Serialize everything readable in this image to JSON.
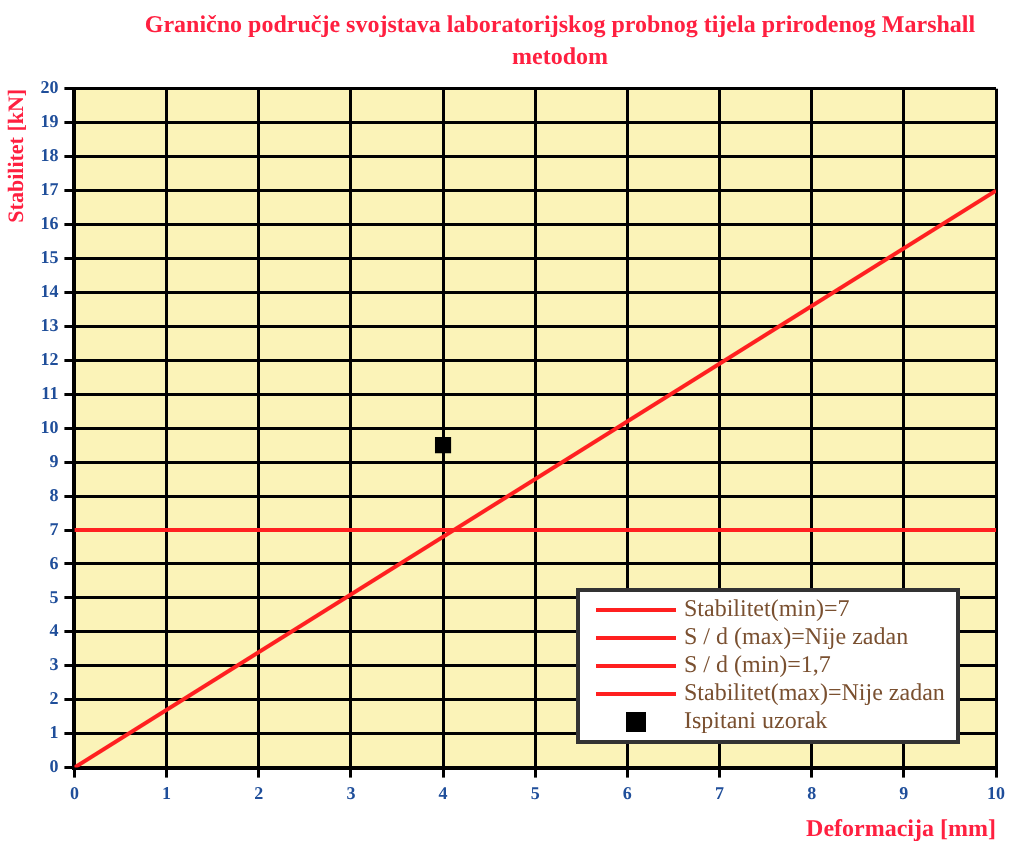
{
  "chart_data": {
    "type": "line",
    "title": "Granično područje svojstava laboratorijskog probnog tijela prirodenog Marshall metodom",
    "xlabel": "Deformacija [mm]",
    "ylabel": "Stabilitet [kN]",
    "xlim": [
      0,
      10
    ],
    "xticks": [
      0,
      1,
      2,
      3,
      4,
      5,
      6,
      7,
      8,
      9,
      10
    ],
    "ylim": [
      0,
      20
    ],
    "yticks": [
      0,
      1,
      2,
      3,
      4,
      5,
      6,
      7,
      8,
      9,
      10,
      11,
      12,
      13,
      14,
      15,
      16,
      17,
      18,
      19,
      20
    ],
    "grid": true,
    "legend": "bottom right",
    "series": [
      {
        "name": "Stabilitet(min)=7",
        "color": "#ff2020",
        "x": [
          0,
          10
        ],
        "values": [
          7,
          7
        ]
      },
      {
        "name": "S / d (max)=Nije zadan",
        "color": "#ff2020"
      },
      {
        "name": "S / d (min)=1,7",
        "color": "#ff2020",
        "x": [
          0,
          10
        ],
        "values": [
          0,
          17
        ]
      },
      {
        "name": "Stabilitet(max)=Nije zadan",
        "color": "#ff2020"
      },
      {
        "name": "Ispitani uzorak",
        "type": "scatter",
        "marker": "square",
        "color": "#000000",
        "x": [
          4
        ],
        "values": [
          9.5
        ]
      }
    ]
  }
}
